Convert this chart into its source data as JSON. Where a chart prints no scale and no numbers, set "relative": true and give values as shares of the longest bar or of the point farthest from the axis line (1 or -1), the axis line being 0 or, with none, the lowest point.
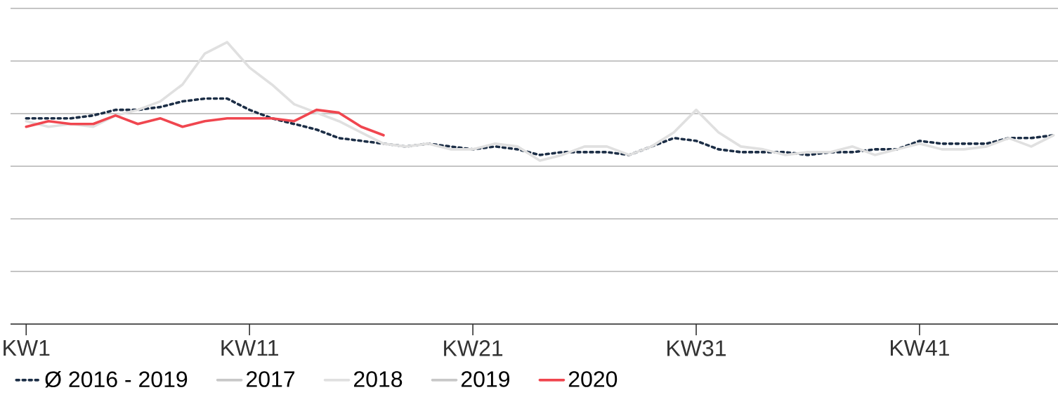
{
  "chart_data": {
    "type": "line",
    "relative": true,
    "grid": "y",
    "legend": "bottom left",
    "categories": [
      "KW1",
      null,
      null,
      null,
      null,
      null,
      null,
      null,
      null,
      null,
      "KW11",
      null,
      null,
      null,
      null,
      null,
      null,
      null,
      null,
      null,
      "KW21",
      null,
      null,
      null,
      null,
      null,
      null,
      null,
      null,
      null,
      "KW31",
      null,
      null,
      null,
      null,
      null,
      null,
      null,
      null,
      null,
      "KW41",
      null,
      null,
      null,
      null,
      null,
      null
    ],
    "series": [
      {
        "name": "Ø 2016 - 2019",
        "color": "#1c2e46",
        "line_style": "dotted",
        "values": [
          0.73,
          0.73,
          0.73,
          0.74,
          0.76,
          0.76,
          0.77,
          0.79,
          0.8,
          0.8,
          0.76,
          0.73,
          0.71,
          0.69,
          0.66,
          0.65,
          0.64,
          0.63,
          0.64,
          0.63,
          0.62,
          0.63,
          0.62,
          0.6,
          0.61,
          0.61,
          0.61,
          0.6,
          0.63,
          0.66,
          0.65,
          0.62,
          0.61,
          0.61,
          0.61,
          0.6,
          0.61,
          0.61,
          0.62,
          0.62,
          0.65,
          0.64,
          0.64,
          0.64,
          0.66,
          0.66,
          0.67
        ]
      },
      {
        "name": "2017",
        "color": "#c8c8c8",
        "values": [
          null,
          null,
          null,
          null,
          null,
          null,
          null,
          null,
          null,
          null,
          null,
          null,
          null,
          null,
          null,
          null,
          null,
          null,
          null,
          null,
          null,
          null,
          null,
          null,
          null,
          null,
          null,
          null,
          null,
          null,
          null,
          null,
          null,
          null,
          null,
          null,
          null,
          null,
          null,
          null,
          null,
          null,
          null,
          null,
          null,
          null,
          null
        ]
      },
      {
        "name": "2018",
        "color": "#e0e0e0",
        "values": [
          0.72,
          0.7,
          0.71,
          0.7,
          0.74,
          0.76,
          0.79,
          0.85,
          0.96,
          1,
          0.91,
          0.85,
          0.78,
          0.75,
          0.72,
          0.68,
          0.64,
          0.63,
          0.64,
          0.62,
          0.62,
          0.64,
          0.63,
          0.58,
          0.6,
          0.63,
          0.63,
          0.6,
          0.63,
          0.68,
          0.76,
          0.68,
          0.63,
          0.62,
          0.6,
          0.61,
          0.61,
          0.63,
          0.6,
          0.62,
          0.64,
          0.62,
          0.62,
          0.63,
          0.66,
          0.63,
          0.67
        ]
      },
      {
        "name": "2019",
        "color": "#c8c8c8",
        "values": [
          null,
          null,
          null,
          null,
          null,
          null,
          null,
          null,
          null,
          null,
          null,
          null,
          null,
          null,
          null,
          null,
          null,
          null,
          null,
          null,
          null,
          null,
          null,
          null,
          null,
          null,
          null,
          null,
          null,
          null,
          null,
          null,
          null,
          null,
          null,
          null,
          null,
          null,
          null,
          null,
          null,
          null,
          null,
          null,
          null,
          null,
          null
        ]
      },
      {
        "name": "2020",
        "color": "#f0464f",
        "values": [
          0.7,
          0.72,
          0.71,
          0.71,
          0.74,
          0.71,
          0.73,
          0.7,
          0.72,
          0.73,
          0.73,
          0.73,
          0.72,
          0.76,
          0.75,
          0.7,
          0.67,
          null,
          null,
          null,
          null,
          null,
          null,
          null,
          null,
          null,
          null,
          null,
          null,
          null,
          null,
          null,
          null,
          null,
          null,
          null,
          null,
          null,
          null,
          null,
          null,
          null,
          null,
          null,
          null,
          null,
          null
        ]
      }
    ]
  }
}
